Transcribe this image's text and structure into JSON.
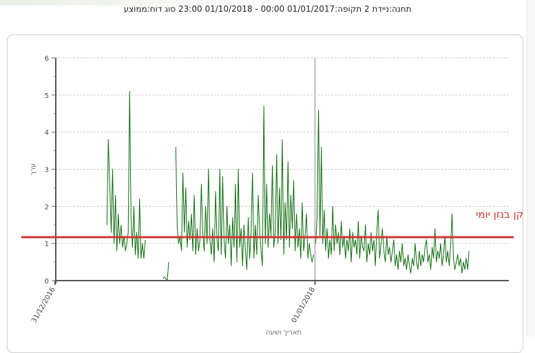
{
  "header": {
    "title": "תחנה:ניידת 2 תקופה:01/01/2017 00:00 - 01/10/2018 23:00 סוג דוח:ממוצע"
  },
  "colors": {
    "series": "#0b6b0b",
    "standard_line": "#d0342c",
    "grid": "#cccccc",
    "year_divider": "#cfcfcf"
  },
  "chart_data": {
    "type": "line",
    "title": "",
    "xlabel": "תאריך ושעה",
    "ylabel": "ערך",
    "ylim": [
      0,
      6
    ],
    "yticks": [
      "0",
      "1",
      "2",
      "3",
      "4",
      "5",
      "6"
    ],
    "xticks": [
      "31/12/2016",
      "01/01/2018"
    ],
    "xlim_days": [
      0,
      639
    ],
    "x_tick_days": [
      0,
      366
    ],
    "year_divider_day": 366,
    "grid": "horizontal-dashed",
    "standard": {
      "label": "תקן בנזן יומי",
      "value": 1.17
    },
    "series": [
      {
        "segments": [
          {
            "start_day": 73,
            "step_days": 2,
            "values": [
              1.5,
              3.8,
              2.6,
              1.3,
              3.0,
              1.0,
              2.3,
              0.8,
              1.8,
              1.0,
              1.5,
              0.9,
              1.2,
              0.8,
              1.0,
              1.3,
              5.1,
              1.7,
              0.9,
              2.0,
              0.7,
              1.3,
              0.6,
              2.2,
              0.6,
              1.0,
              0.6,
              1.1
            ]
          },
          {
            "start_day": 152,
            "step_days": 2,
            "values": [
              0.05,
              0.1,
              0.05,
              0.0,
              0.5
            ]
          },
          {
            "start_day": 170,
            "step_days": 2,
            "values": [
              3.6,
              1.4,
              1.0,
              1.2,
              0.8,
              2.9,
              1.3,
              2.5,
              0.9,
              1.6,
              1.1,
              1.8,
              0.8,
              2.3,
              0.7,
              1.4,
              0.8,
              1.1,
              2.6,
              1.3,
              0.8,
              2.0,
              1.0,
              3.0,
              1.1,
              0.7,
              1.4,
              0.5,
              2.4,
              1.1,
              0.8,
              3.0,
              0.7,
              2.8,
              1.1,
              0.6,
              2.0,
              1.0,
              1.5,
              0.4,
              1.7,
              0.9,
              2.6,
              0.5,
              3.0,
              0.9,
              1.4,
              0.4,
              1.5,
              0.8,
              0.3,
              1.7,
              0.6,
              1.3,
              2.9,
              0.6,
              1.5,
              0.7,
              2.3,
              1.4,
              0.8,
              0.4,
              4.7,
              1.0,
              2.6,
              0.9,
              1.8,
              1.2,
              3.1,
              0.9,
              1.3,
              3.4,
              1.0,
              2.5,
              1.1,
              3.8,
              0.7,
              2.1,
              1.1,
              3.2,
              0.9,
              2.3,
              1.4,
              2.7,
              0.8,
              1.8,
              0.9,
              1.4,
              0.6,
              2.1,
              0.8,
              1.2,
              1.8,
              0.6,
              1.0,
              0.7,
              0.5,
              0.7
            ]
          },
          {
            "start_day": 367,
            "step_days": 2,
            "values": [
              1.0,
              1.7,
              4.6,
              1.2,
              3.6,
              1.0,
              1.9,
              0.8,
              1.4,
              0.6,
              1.1,
              0.7,
              2.0,
              0.8,
              1.5,
              1.0,
              1.3,
              0.7,
              1.6,
              0.9,
              1.2,
              0.6,
              1.1,
              0.8,
              1.4,
              0.5,
              1.3,
              0.9,
              1.1,
              0.7,
              1.6,
              0.6,
              1.2,
              0.9,
              0.8,
              1.5,
              0.5,
              1.0,
              0.7,
              1.3,
              0.8,
              1.1,
              0.4,
              1.3,
              1.9,
              0.6,
              1.0,
              1.4,
              0.8,
              0.5,
              1.2,
              0.7,
              0.9,
              0.5,
              0.8,
              1.1,
              0.4,
              0.7,
              0.3,
              0.8,
              0.5,
              1.0,
              0.4,
              0.6,
              0.3,
              0.7,
              0.4,
              0.2,
              0.6,
              0.4,
              1.0,
              0.5,
              0.3,
              0.8,
              0.4,
              0.7,
              0.5,
              0.9,
              1.1,
              0.5,
              0.7,
              0.3,
              0.9,
              0.6,
              1.4,
              0.5,
              0.8,
              0.6,
              1.0,
              0.4,
              0.7,
              1.2,
              0.5,
              0.8,
              0.4,
              0.9,
              1.8,
              0.6,
              0.3,
              0.5,
              0.7,
              0.4,
              0.6,
              0.2,
              0.5,
              0.3,
              0.6,
              0.3,
              0.8
            ]
          }
        ]
      }
    ]
  }
}
